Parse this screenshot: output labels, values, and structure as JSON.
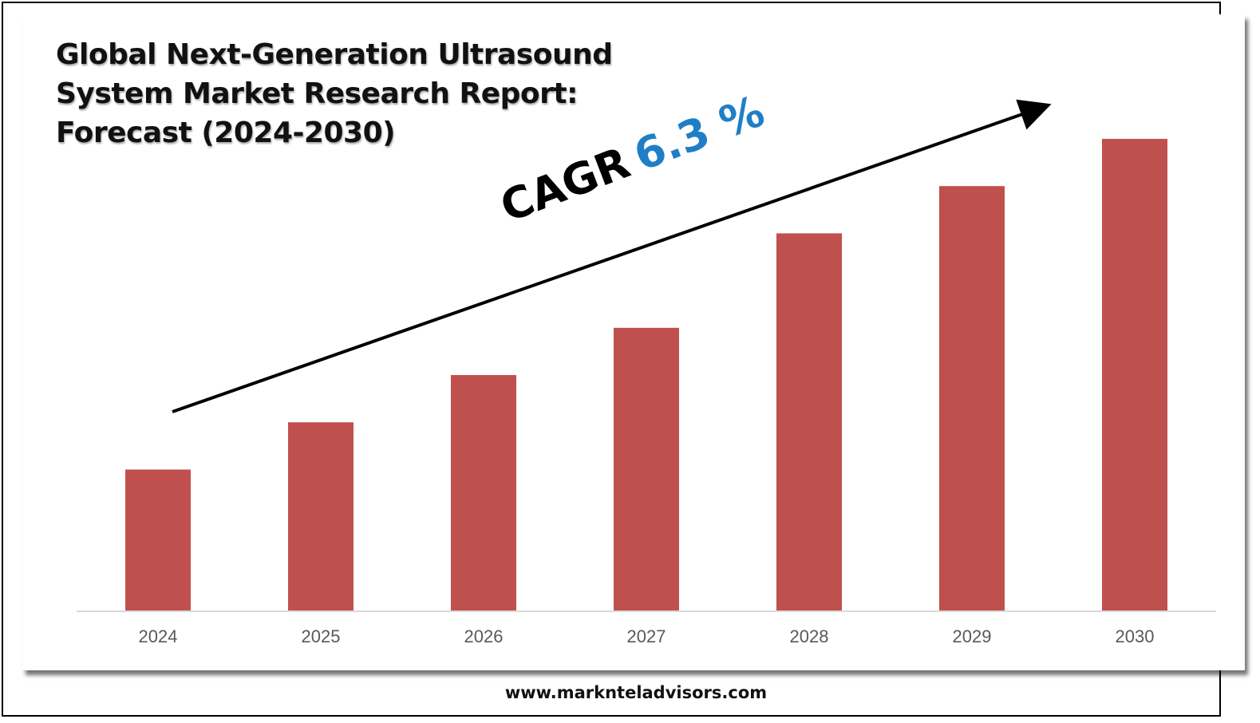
{
  "title_lines": [
    "Global Next-Generation Ultrasound",
    "System Market Research Report:",
    "Forecast (2024-2030)"
  ],
  "annotation": {
    "label": "CAGR",
    "value": "6.3 %",
    "value_color": "#1f7fc6"
  },
  "footer": "www.marknteladvisors.com",
  "chart_data": {
    "type": "bar",
    "categories": [
      "2024",
      "2025",
      "2026",
      "2027",
      "2028",
      "2029",
      "2030"
    ],
    "values": [
      30,
      40,
      50,
      60,
      80,
      90,
      100
    ],
    "ylim": [
      0,
      100
    ],
    "bar_color": "#c0504d",
    "grid": false,
    "y_axis_shown": false,
    "value_labels_shown": false
  }
}
